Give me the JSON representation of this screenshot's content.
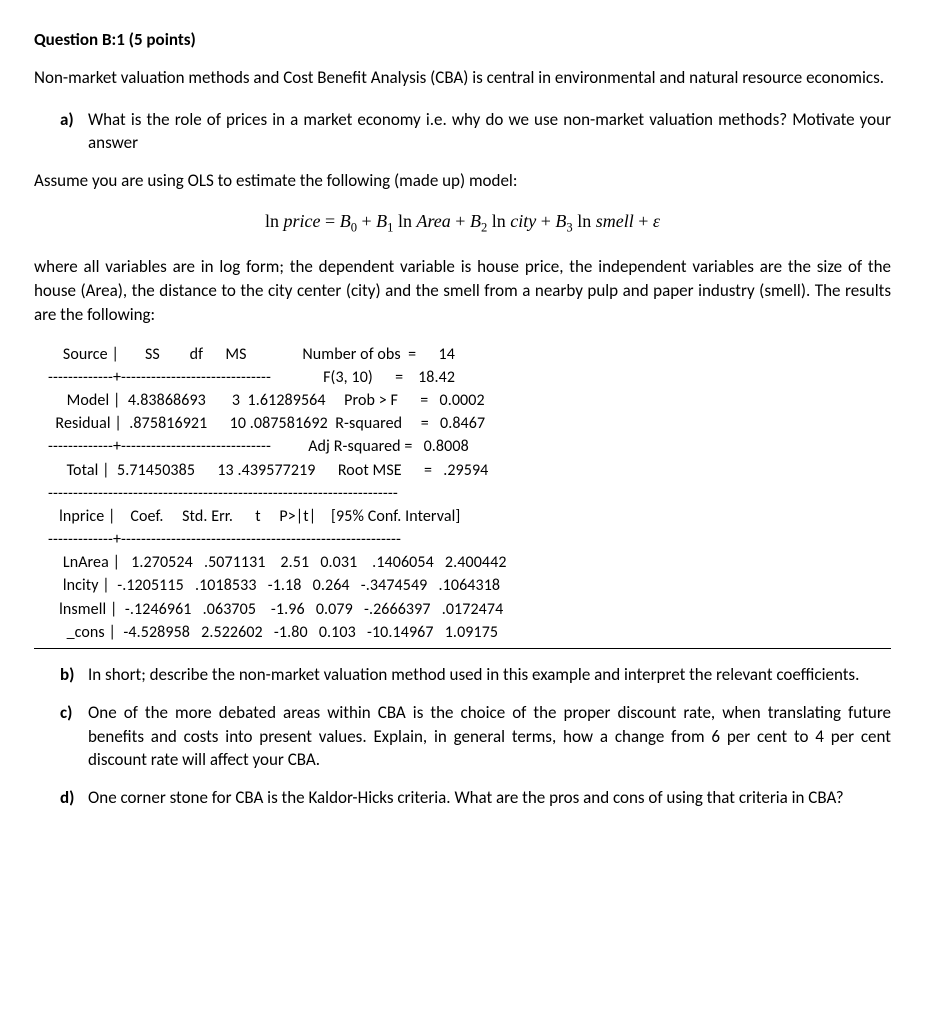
{
  "title": "Question B:1 (5 points)",
  "intro": "Non-market valuation methods and Cost Benefit Analysis (CBA) is central in environmental and natural resource economics.",
  "parts": {
    "a": {
      "letter": "a)",
      "text": "What is the role of prices in a market economy i.e. why do we use non-market valuation methods? Motivate your answer"
    },
    "b": {
      "letter": "b)",
      "text": "In short; describe the non-market valuation method used in this example and interpret the relevant coefficients."
    },
    "c": {
      "letter": "c)",
      "text": "One of the more debated areas within CBA is the choice of the proper discount rate, when translating future benefits and costs into present values. Explain, in general terms, how a change from 6 per cent to 4 per cent discount rate will affect your CBA."
    },
    "d": {
      "letter": "d)",
      "text": "One corner stone for CBA is the Kaldor-Hicks criteria. What are the pros and cons of using that criteria in CBA?"
    }
  },
  "assume": "Assume you are using OLS to estimate the following (made up) model:",
  "equation": {
    "lhs_ln": "ln ",
    "lhs_var": "price",
    "eq": " = ",
    "b0": "B",
    "sub0": "0",
    "plus1": " + ",
    "b1": "B",
    "sub1": "1",
    "ln1": " ln ",
    "v1": "Area",
    "plus2": " + ",
    "b2": "B",
    "sub2": "2",
    "ln2": " ln ",
    "v2": "city",
    "plus3": " + ",
    "b3": "B",
    "sub3": "3",
    "ln3": " ln ",
    "v3": "smell",
    "plus_eps": " + ",
    "eps": "ε"
  },
  "where": "where all variables are in log form; the dependent variable is house price, the independent variables are the size of the house (Area), the distance to the city center (city) and the smell from a nearby pulp and paper industry (smell). The results are the following:",
  "stata": {
    "header_left": "    Source |       SS        df      MS",
    "header_right_1": "Number of obs  =      14",
    "sep1": "-------------+------------------------------",
    "header_right_2": "F(3, 10)      =    18.42",
    "model_row": "     Model |  4.83868693       3  1.61289564",
    "header_right_3": "Prob > F      =   0.0002",
    "resid_row": "  Residual |  .875816921      10 .087581692",
    "header_right_4": "R-squared     =   0.8467",
    "sep2": "-------------+------------------------------",
    "header_right_5": "Adj R-squared =   0.8008",
    "total_row": "     Total |  5.71450385      13 .439577219",
    "header_right_6": "Root MSE      =   .29594",
    "longsep": "----------------------------------------------------------------------",
    "coef_header": "   lnprice |    Coef.     Std. Err.      t     P>|t|    [95% Conf. Interval]",
    "sep3": "-------------+--------------------------------------------------------",
    "row_area": "    LnArea |   1.270524   .5071131    2.51   0.031    .1406054   2.400442",
    "row_city": "    lncity |  -.1205115   .1018533   -1.18   0.264   -.3474549   .1064318",
    "row_smell": "   lnsmell |  -.1246961   .063705    -1.96   0.079   -.2666397   .0172474",
    "row_cons": "     _cons |  -4.528958   2.522602   -1.80   0.103   -10.14967   1.09175"
  }
}
